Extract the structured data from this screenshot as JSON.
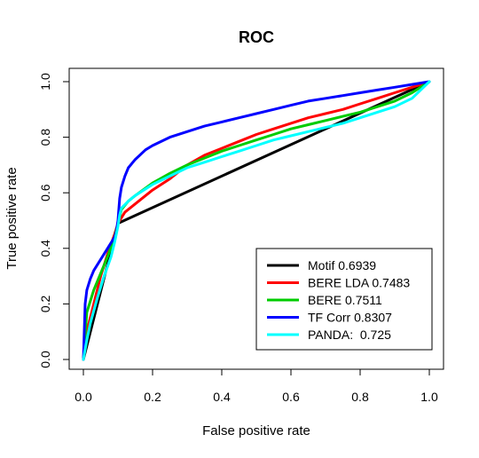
{
  "chart_data": {
    "type": "line",
    "title": "ROC",
    "xlabel": "False positive rate",
    "ylabel": "True positive rate",
    "xlim": [
      0,
      1
    ],
    "ylim": [
      0,
      1
    ],
    "xticks": [
      "0.0",
      "0.2",
      "0.4",
      "0.6",
      "0.8",
      "1.0"
    ],
    "yticks": [
      "0.0",
      "0.2",
      "0.4",
      "0.6",
      "0.8",
      "1.0"
    ],
    "grid": false,
    "legend_position": "bottom-right",
    "series": [
      {
        "name": "Motif 0.6939",
        "color": "#000000",
        "x": [
          0,
          0.1,
          1
        ],
        "y": [
          0,
          0.49,
          1
        ]
      },
      {
        "name": "BERE LDA 0.7483",
        "color": "#ff0000",
        "x": [
          0,
          0.01,
          0.03,
          0.05,
          0.07,
          0.09,
          0.1,
          0.12,
          0.15,
          0.2,
          0.25,
          0.3,
          0.35,
          0.4,
          0.45,
          0.5,
          0.55,
          0.6,
          0.65,
          0.7,
          0.75,
          0.8,
          0.85,
          0.9,
          0.95,
          1
        ],
        "y": [
          0,
          0.1,
          0.2,
          0.3,
          0.38,
          0.45,
          0.49,
          0.53,
          0.56,
          0.61,
          0.65,
          0.7,
          0.735,
          0.76,
          0.785,
          0.81,
          0.83,
          0.85,
          0.87,
          0.885,
          0.9,
          0.92,
          0.94,
          0.96,
          0.98,
          1
        ]
      },
      {
        "name": "BERE 0.7511",
        "color": "#00cc00",
        "x": [
          0,
          0.01,
          0.03,
          0.05,
          0.07,
          0.09,
          0.1,
          0.11,
          0.13,
          0.15,
          0.2,
          0.25,
          0.3,
          0.35,
          0.4,
          0.45,
          0.5,
          0.55,
          0.6,
          0.65,
          0.7,
          0.75,
          0.8,
          0.85,
          0.9,
          0.95,
          1
        ],
        "y": [
          0,
          0.17,
          0.25,
          0.31,
          0.37,
          0.44,
          0.49,
          0.54,
          0.57,
          0.59,
          0.635,
          0.67,
          0.7,
          0.725,
          0.75,
          0.77,
          0.79,
          0.81,
          0.83,
          0.845,
          0.86,
          0.875,
          0.89,
          0.91,
          0.93,
          0.96,
          1
        ]
      },
      {
        "name": "TF Corr 0.8307",
        "color": "#0000ff",
        "x": [
          0,
          0.005,
          0.01,
          0.02,
          0.03,
          0.05,
          0.07,
          0.09,
          0.095,
          0.1,
          0.105,
          0.11,
          0.12,
          0.13,
          0.15,
          0.18,
          0.2,
          0.25,
          0.3,
          0.35,
          0.4,
          0.45,
          0.5,
          0.55,
          0.6,
          0.65,
          0.7,
          0.75,
          0.8,
          0.85,
          0.9,
          0.95,
          1
        ],
        "y": [
          0,
          0.2,
          0.25,
          0.29,
          0.32,
          0.36,
          0.4,
          0.44,
          0.46,
          0.5,
          0.58,
          0.62,
          0.66,
          0.69,
          0.72,
          0.755,
          0.77,
          0.8,
          0.82,
          0.84,
          0.855,
          0.87,
          0.885,
          0.9,
          0.915,
          0.93,
          0.94,
          0.95,
          0.96,
          0.97,
          0.98,
          0.99,
          1
        ]
      },
      {
        "name": "PANDA:  0.725",
        "color": "#00ffff",
        "x": [
          0,
          0.01,
          0.02,
          0.04,
          0.06,
          0.08,
          0.09,
          0.1,
          0.105,
          0.11,
          0.13,
          0.15,
          0.2,
          0.25,
          0.3,
          0.35,
          0.4,
          0.45,
          0.5,
          0.55,
          0.6,
          0.65,
          0.7,
          0.75,
          0.8,
          0.85,
          0.9,
          0.95,
          1
        ],
        "y": [
          0,
          0.07,
          0.13,
          0.22,
          0.3,
          0.37,
          0.42,
          0.48,
          0.52,
          0.545,
          0.57,
          0.59,
          0.63,
          0.66,
          0.69,
          0.71,
          0.73,
          0.75,
          0.77,
          0.79,
          0.805,
          0.82,
          0.835,
          0.85,
          0.87,
          0.89,
          0.91,
          0.94,
          1
        ]
      }
    ]
  }
}
